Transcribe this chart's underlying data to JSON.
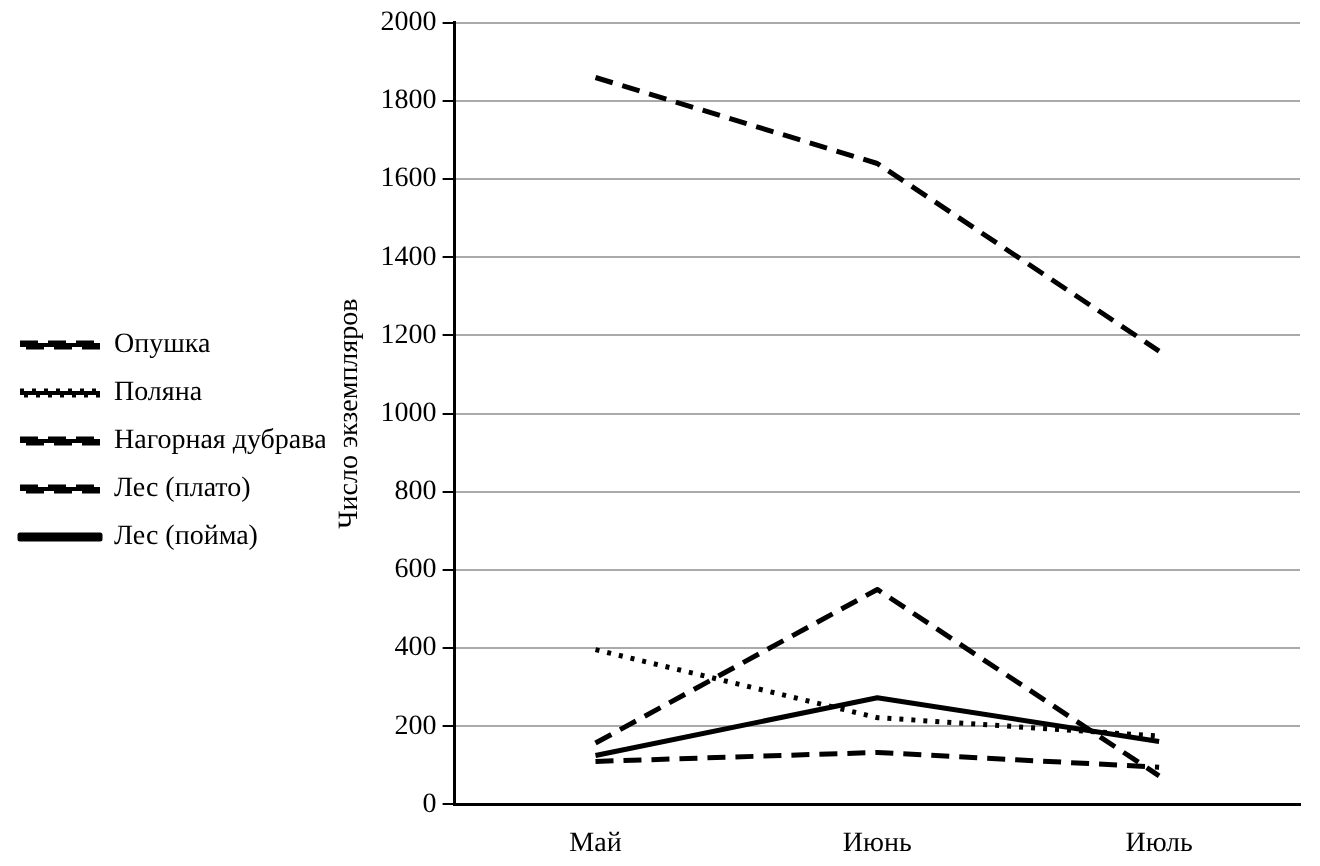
{
  "chart_data": {
    "type": "line",
    "ylabel": "Число экземпляров",
    "categories": [
      "Май",
      "Июнь",
      "Июль"
    ],
    "series": [
      {
        "name": "Опушка",
        "color": "#000000",
        "line_style": "dashed",
        "values": [
          1860,
          1640,
          1160
        ]
      },
      {
        "name": "Поляна",
        "color": "#000000",
        "line_style": "dotted",
        "values": [
          396,
          222,
          175
        ]
      },
      {
        "name": "Нагорная дубрава",
        "color": "#000000",
        "line_style": "dashed",
        "values": [
          110,
          133,
          95
        ]
      },
      {
        "name": "Лес (плато)",
        "color": "#000000",
        "line_style": "dashed",
        "values": [
          157,
          550,
          73
        ]
      },
      {
        "name": "Лес (пойма)",
        "color": "#000000",
        "line_style": "solid",
        "values": [
          125,
          273,
          161
        ]
      }
    ],
    "ylim": [
      0,
      2000
    ],
    "yticks": [
      0,
      200,
      400,
      600,
      800,
      1000,
      1200,
      1400,
      1600,
      1800,
      2000
    ],
    "grid": "y",
    "legend": "left",
    "marker": "none"
  }
}
